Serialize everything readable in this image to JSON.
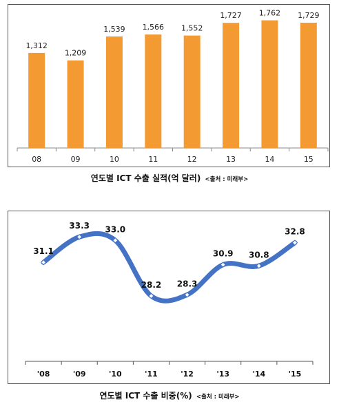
{
  "chart_data": [
    {
      "type": "bar",
      "categories": [
        "08",
        "09",
        "10",
        "11",
        "12",
        "13",
        "14",
        "15"
      ],
      "values": [
        1312,
        1209,
        1539,
        1566,
        1552,
        1727,
        1762,
        1729
      ],
      "value_labels": [
        "1,312",
        "1,209",
        "1,539",
        "1,566",
        "1,552",
        "1,727",
        "1,762",
        "1,729"
      ],
      "title": "연도별 ICT 수출 실적(억 달러)",
      "source": "<출처 : 미래부>",
      "ylim": [
        0,
        1900
      ],
      "grid": false,
      "color": "#F39A32"
    },
    {
      "type": "line",
      "categories": [
        "'08",
        "'09",
        "'10",
        "'11",
        "'12",
        "'13",
        "'14",
        "'15"
      ],
      "values": [
        31.1,
        33.3,
        33.0,
        28.2,
        28.3,
        30.9,
        30.8,
        32.8
      ],
      "value_labels": [
        "31.1",
        "33.3",
        "33.0",
        "28.2",
        "28.3",
        "30.9",
        "30.8",
        "32.8"
      ],
      "title": "연도별 ICT 수출 비중(%)",
      "source": "<출처 : 미래부>",
      "ylim": [
        26.0,
        34.8
      ],
      "grid": false,
      "color": "#4472C4"
    }
  ]
}
